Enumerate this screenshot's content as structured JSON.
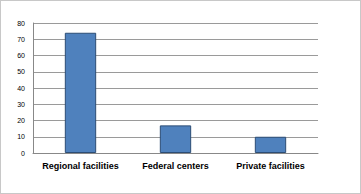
{
  "chart_data": {
    "type": "bar",
    "categories": [
      "Regional facilities",
      "Federal centers",
      "Private facilities"
    ],
    "values": [
      74,
      17,
      10
    ],
    "color": "#4f81bd",
    "ylim": [
      0,
      80
    ],
    "yticks": [
      0,
      10,
      20,
      30,
      40,
      50,
      60,
      70,
      80
    ],
    "grid": true
  }
}
